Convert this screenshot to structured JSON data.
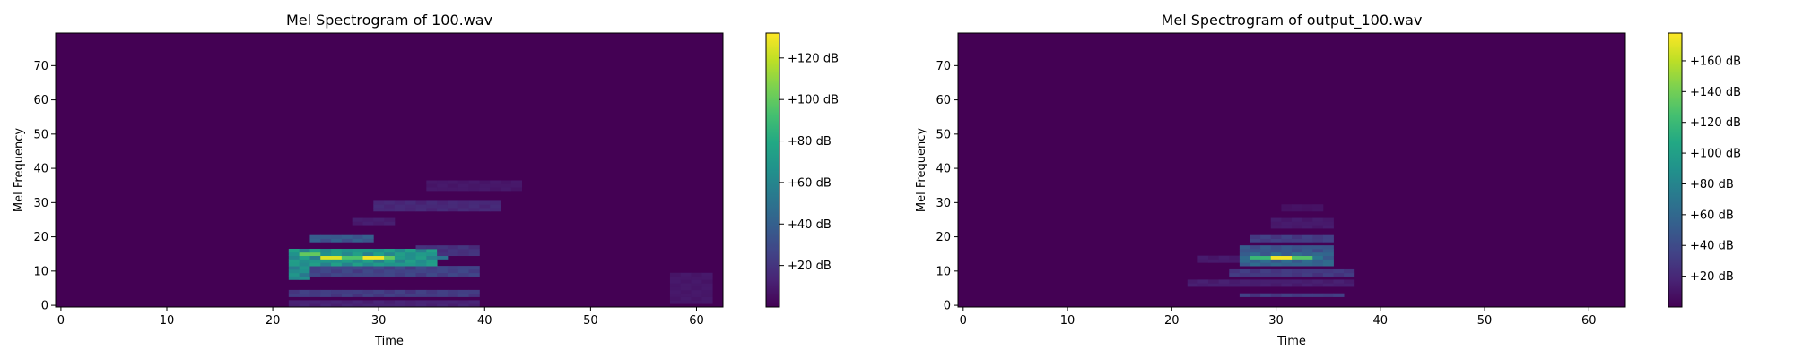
{
  "chart_data": [
    {
      "type": "heatmap",
      "title": "Mel Spectrogram of 100.wav",
      "xlabel": "Time",
      "ylabel": "Mel Frequency",
      "xlim": [
        -0.5,
        62.5
      ],
      "ylim": [
        -0.5,
        79.5
      ],
      "xticks": [
        0,
        10,
        20,
        30,
        40,
        50,
        60
      ],
      "yticks": [
        0,
        10,
        20,
        30,
        40,
        50,
        60,
        70
      ],
      "colormap": "viridis",
      "grid": false,
      "colorbar": {
        "range": [
          0,
          132
        ],
        "ticks": [
          20,
          40,
          60,
          80,
          100,
          120
        ],
        "tick_labels": [
          "+20 dB",
          "+40 dB",
          "+60 dB",
          "+80 dB",
          "+100 dB",
          "+120 dB"
        ]
      },
      "blobs": [
        {
          "t": [
            22,
            36
          ],
          "f": [
            12,
            17
          ],
          "value": 65
        },
        {
          "t": [
            22,
            24
          ],
          "f": [
            8,
            17
          ],
          "value": 60
        },
        {
          "t": [
            24,
            30
          ],
          "f": [
            19,
            21
          ],
          "value": 35
        },
        {
          "t": [
            22,
            40
          ],
          "f": [
            9,
            12
          ],
          "value": 25
        },
        {
          "t": [
            22,
            40
          ],
          "f": [
            3,
            5
          ],
          "value": 22
        },
        {
          "t": [
            34,
            40
          ],
          "f": [
            15,
            18
          ],
          "value": 18
        },
        {
          "t": [
            30,
            42
          ],
          "f": [
            28,
            31
          ],
          "value": 14
        },
        {
          "t": [
            35,
            44
          ],
          "f": [
            34,
            37
          ],
          "value": 8
        },
        {
          "t": [
            28,
            32
          ],
          "f": [
            24,
            26
          ],
          "value": 10
        },
        {
          "t": [
            58,
            62
          ],
          "f": [
            1,
            10
          ],
          "value": 8
        },
        {
          "t": [
            22,
            40
          ],
          "f": [
            0,
            2
          ],
          "value": 12
        }
      ],
      "ridge": [
        {
          "t": [
            23,
            25
          ],
          "f": 15,
          "value": 100
        },
        {
          "t": [
            25,
            27
          ],
          "f": 14,
          "value": 125
        },
        {
          "t": [
            27,
            29
          ],
          "f": 14,
          "value": 95
        },
        {
          "t": [
            29,
            31
          ],
          "f": 14,
          "value": 130
        },
        {
          "t": [
            31,
            32
          ],
          "f": 14,
          "value": 100
        },
        {
          "t": [
            32,
            34
          ],
          "f": 14,
          "value": 65
        },
        {
          "t": [
            34,
            37
          ],
          "f": 14,
          "value": 50
        }
      ]
    },
    {
      "type": "heatmap",
      "title": "Mel Spectrogram of output_100.wav",
      "xlabel": "Time",
      "ylabel": "Mel Frequency",
      "xlim": [
        -0.5,
        63.5
      ],
      "ylim": [
        -0.5,
        79.5
      ],
      "xticks": [
        0,
        10,
        20,
        30,
        40,
        50,
        60
      ],
      "yticks": [
        0,
        10,
        20,
        30,
        40,
        50,
        60,
        70
      ],
      "colormap": "viridis",
      "grid": false,
      "colorbar": {
        "range": [
          0,
          178
        ],
        "ticks": [
          20,
          40,
          60,
          80,
          100,
          120,
          140,
          160
        ],
        "tick_labels": [
          "+20 dB",
          "+40 dB",
          "+60 dB",
          "+80 dB",
          "+100 dB",
          "+120 dB",
          "+140 dB",
          "+160 dB"
        ]
      },
      "blobs": [
        {
          "t": [
            27,
            36
          ],
          "f": [
            12,
            16
          ],
          "value": 55
        },
        {
          "t": [
            27,
            36
          ],
          "f": [
            16,
            18
          ],
          "value": 45
        },
        {
          "t": [
            28,
            36
          ],
          "f": [
            19,
            21
          ],
          "value": 30
        },
        {
          "t": [
            26,
            38
          ],
          "f": [
            9,
            11
          ],
          "value": 28
        },
        {
          "t": [
            27,
            37
          ],
          "f": [
            3,
            4
          ],
          "value": 30
        },
        {
          "t": [
            22,
            38
          ],
          "f": [
            6,
            8
          ],
          "value": 14
        },
        {
          "t": [
            30,
            36
          ],
          "f": [
            23,
            26
          ],
          "value": 12
        },
        {
          "t": [
            31,
            35
          ],
          "f": [
            28,
            30
          ],
          "value": 8
        },
        {
          "t": [
            23,
            27
          ],
          "f": [
            13,
            15
          ],
          "value": 12
        }
      ],
      "ridge": [
        {
          "t": [
            28,
            30
          ],
          "f": 14,
          "value": 120
        },
        {
          "t": [
            30,
            32
          ],
          "f": 14,
          "value": 175
        },
        {
          "t": [
            32,
            34
          ],
          "f": 14,
          "value": 130
        },
        {
          "t": [
            34,
            35
          ],
          "f": 14,
          "value": 70
        }
      ]
    }
  ]
}
